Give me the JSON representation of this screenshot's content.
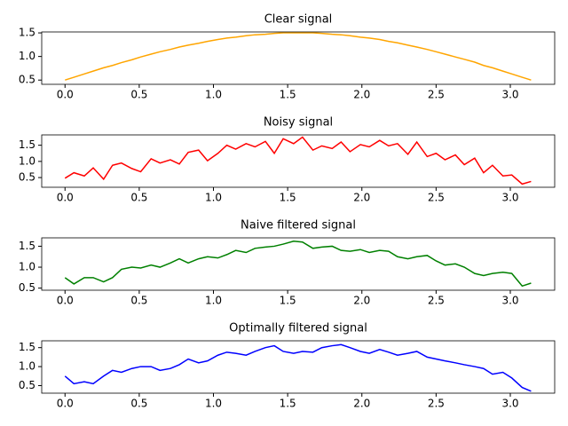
{
  "chart_data": [
    {
      "type": "line",
      "title": "Clear signal",
      "color": "#ffa500",
      "x": [
        0,
        0.06,
        0.13,
        0.19,
        0.26,
        0.32,
        0.38,
        0.45,
        0.51,
        0.58,
        0.64,
        0.71,
        0.77,
        0.83,
        0.9,
        0.96,
        1.03,
        1.09,
        1.15,
        1.22,
        1.28,
        1.35,
        1.41,
        1.47,
        1.54,
        1.6,
        1.67,
        1.73,
        1.8,
        1.86,
        1.92,
        1.99,
        2.05,
        2.12,
        2.18,
        2.24,
        2.31,
        2.37,
        2.44,
        2.5,
        2.56,
        2.63,
        2.69,
        2.76,
        2.82,
        2.88,
        2.95,
        3.01,
        3.08,
        3.14
      ],
      "values": [
        0.5,
        0.56,
        0.63,
        0.69,
        0.76,
        0.81,
        0.87,
        0.93,
        0.99,
        1.05,
        1.1,
        1.15,
        1.2,
        1.24,
        1.28,
        1.32,
        1.36,
        1.39,
        1.41,
        1.44,
        1.46,
        1.47,
        1.49,
        1.5,
        1.5,
        1.5,
        1.5,
        1.49,
        1.47,
        1.46,
        1.44,
        1.41,
        1.39,
        1.36,
        1.32,
        1.29,
        1.24,
        1.2,
        1.15,
        1.1,
        1.05,
        0.99,
        0.94,
        0.88,
        0.81,
        0.76,
        0.69,
        0.63,
        0.56,
        0.5
      ],
      "xlim": [
        -0.157,
        3.299
      ],
      "ylim": [
        0.41,
        1.52
      ],
      "xticks": [
        {
          "value": 0,
          "label": "0.0"
        },
        0.5,
        {
          "value": 1,
          "label": "1.0"
        },
        1.5,
        {
          "value": 2,
          "label": "2.0"
        },
        2.5,
        {
          "value": 3,
          "label": "3.0"
        }
      ],
      "yticks": [
        0.5,
        {
          "value": 1,
          "label": "1.0"
        },
        1.5
      ]
    },
    {
      "type": "line",
      "title": "Noisy signal",
      "color": "#ff0000",
      "x": [
        0,
        0.06,
        0.13,
        0.19,
        0.26,
        0.32,
        0.38,
        0.45,
        0.51,
        0.58,
        0.64,
        0.71,
        0.77,
        0.83,
        0.9,
        0.96,
        1.03,
        1.09,
        1.15,
        1.22,
        1.28,
        1.35,
        1.41,
        1.47,
        1.54,
        1.6,
        1.67,
        1.73,
        1.8,
        1.86,
        1.92,
        1.99,
        2.05,
        2.12,
        2.18,
        2.24,
        2.31,
        2.37,
        2.44,
        2.5,
        2.56,
        2.63,
        2.69,
        2.76,
        2.82,
        2.88,
        2.95,
        3.01,
        3.08,
        3.14
      ],
      "values": [
        0.48,
        0.65,
        0.55,
        0.8,
        0.45,
        0.88,
        0.95,
        0.78,
        0.68,
        1.08,
        0.95,
        1.05,
        0.92,
        1.28,
        1.35,
        1.02,
        1.25,
        1.5,
        1.38,
        1.55,
        1.45,
        1.62,
        1.25,
        1.7,
        1.55,
        1.75,
        1.35,
        1.48,
        1.4,
        1.6,
        1.3,
        1.52,
        1.45,
        1.65,
        1.48,
        1.55,
        1.22,
        1.6,
        1.15,
        1.25,
        1.05,
        1.2,
        0.9,
        1.1,
        0.65,
        0.88,
        0.55,
        0.58,
        0.3,
        0.38
      ],
      "xlim": [
        -0.157,
        3.299
      ],
      "ylim": [
        0.2,
        1.82
      ],
      "xticks": [
        {
          "value": 0,
          "label": "0.0"
        },
        0.5,
        {
          "value": 1,
          "label": "1.0"
        },
        1.5,
        {
          "value": 2,
          "label": "2.0"
        },
        2.5,
        {
          "value": 3,
          "label": "3.0"
        }
      ],
      "yticks": [
        0.5,
        {
          "value": 1,
          "label": "1.0"
        },
        1.5
      ]
    },
    {
      "type": "line",
      "title": "Naive filtered signal",
      "color": "#008000",
      "x": [
        0,
        0.06,
        0.13,
        0.19,
        0.26,
        0.32,
        0.38,
        0.45,
        0.51,
        0.58,
        0.64,
        0.71,
        0.77,
        0.83,
        0.9,
        0.96,
        1.03,
        1.09,
        1.15,
        1.22,
        1.28,
        1.35,
        1.41,
        1.47,
        1.54,
        1.6,
        1.67,
        1.73,
        1.8,
        1.86,
        1.92,
        1.99,
        2.05,
        2.12,
        2.18,
        2.24,
        2.31,
        2.37,
        2.44,
        2.5,
        2.56,
        2.63,
        2.69,
        2.76,
        2.82,
        2.88,
        2.95,
        3.01,
        3.08,
        3.14
      ],
      "values": [
        0.75,
        0.6,
        0.75,
        0.75,
        0.65,
        0.75,
        0.95,
        1.0,
        0.98,
        1.05,
        1.0,
        1.1,
        1.2,
        1.1,
        1.2,
        1.25,
        1.22,
        1.3,
        1.4,
        1.35,
        1.45,
        1.48,
        1.5,
        1.55,
        1.62,
        1.6,
        1.45,
        1.48,
        1.5,
        1.4,
        1.38,
        1.42,
        1.35,
        1.4,
        1.38,
        1.25,
        1.2,
        1.25,
        1.28,
        1.15,
        1.05,
        1.08,
        1.0,
        0.85,
        0.8,
        0.85,
        0.88,
        0.85,
        0.55,
        0.62
      ],
      "xlim": [
        -0.157,
        3.299
      ],
      "ylim": [
        0.45,
        1.7
      ],
      "xticks": [
        {
          "value": 0,
          "label": "0.0"
        },
        0.5,
        {
          "value": 1,
          "label": "1.0"
        },
        1.5,
        {
          "value": 2,
          "label": "2.0"
        },
        2.5,
        {
          "value": 3,
          "label": "3.0"
        }
      ],
      "yticks": [
        0.5,
        {
          "value": 1,
          "label": "1.0"
        },
        1.5
      ]
    },
    {
      "type": "line",
      "title": "Optimally filtered signal",
      "color": "#0000ff",
      "x": [
        0,
        0.06,
        0.13,
        0.19,
        0.26,
        0.32,
        0.38,
        0.45,
        0.51,
        0.58,
        0.64,
        0.71,
        0.77,
        0.83,
        0.9,
        0.96,
        1.03,
        1.09,
        1.15,
        1.22,
        1.28,
        1.35,
        1.41,
        1.47,
        1.54,
        1.6,
        1.67,
        1.73,
        1.8,
        1.86,
        1.92,
        1.99,
        2.05,
        2.12,
        2.18,
        2.24,
        2.31,
        2.37,
        2.44,
        2.5,
        2.56,
        2.63,
        2.69,
        2.76,
        2.82,
        2.88,
        2.95,
        3.01,
        3.08,
        3.14
      ],
      "values": [
        0.75,
        0.55,
        0.6,
        0.55,
        0.75,
        0.9,
        0.85,
        0.95,
        1.0,
        1.0,
        0.9,
        0.95,
        1.05,
        1.2,
        1.1,
        1.15,
        1.3,
        1.38,
        1.35,
        1.3,
        1.4,
        1.5,
        1.55,
        1.4,
        1.35,
        1.4,
        1.38,
        1.5,
        1.55,
        1.58,
        1.5,
        1.4,
        1.35,
        1.45,
        1.38,
        1.3,
        1.35,
        1.4,
        1.25,
        1.2,
        1.15,
        1.1,
        1.05,
        1.0,
        0.95,
        0.8,
        0.85,
        0.7,
        0.45,
        0.35
      ],
      "xlim": [
        -0.157,
        3.299
      ],
      "ylim": [
        0.3,
        1.68
      ],
      "xticks": [
        {
          "value": 0,
          "label": "0.0"
        },
        0.5,
        {
          "value": 1,
          "label": "1.0"
        },
        1.5,
        {
          "value": 2,
          "label": "2.0"
        },
        2.5,
        {
          "value": 3,
          "label": "3.0"
        }
      ],
      "yticks": [
        0.5,
        {
          "value": 1,
          "label": "1.0"
        },
        1.5
      ]
    }
  ]
}
